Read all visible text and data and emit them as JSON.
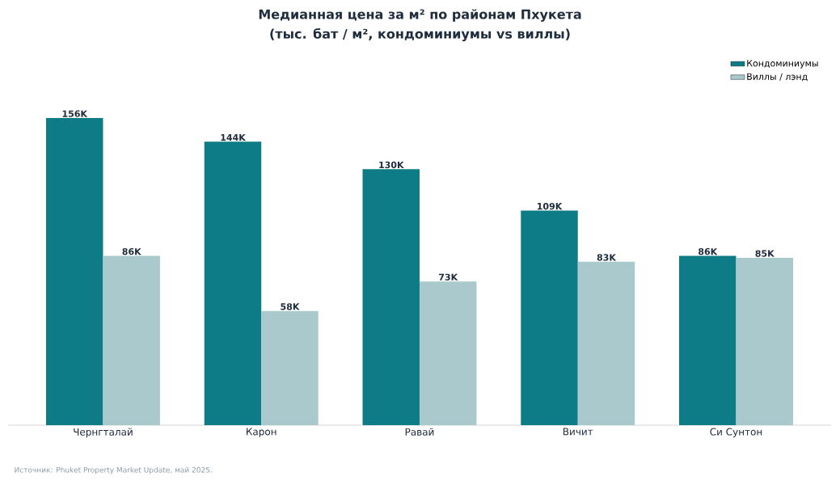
{
  "chart_data": {
    "type": "bar",
    "title": "Медианная цена за м² по районам Пхукета",
    "subtitle": "(тыс. бат / м², кондоминиумы vs виллы)",
    "categories": [
      "Чернгталай",
      "Карон",
      "Равай",
      "Вичит",
      "Си Сунтон"
    ],
    "series": [
      {
        "name": "Кондоминиумы",
        "color": "#0e7c86",
        "values": [
          156,
          144,
          130,
          109,
          86
        ],
        "value_labels": [
          "156K",
          "144K",
          "130K",
          "109K",
          "86K"
        ]
      },
      {
        "name": "Виллы / лэнд",
        "color": "#a9c9cc",
        "values": [
          86,
          58,
          73,
          83,
          85
        ],
        "value_labels": [
          "86K",
          "58K",
          "73K",
          "83K",
          "85K"
        ]
      }
    ],
    "legend": "top right",
    "annotations": [
      "Источник: Phuket Property Market Update, май 2025."
    ]
  }
}
